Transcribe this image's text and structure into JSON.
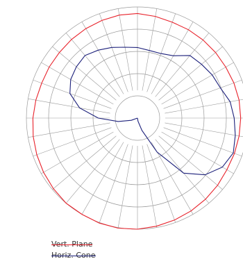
{
  "chart_data": {
    "type": "polar",
    "grid": true,
    "rings": 5,
    "radial_divisions": 36,
    "legend_placement": "bottom-left",
    "series": [
      {
        "name": "Vert. Plane",
        "color": "#e8212a",
        "points": [
          [
            0,
            170
          ],
          [
            10,
            168
          ],
          [
            20,
            166
          ],
          [
            30,
            164
          ],
          [
            40,
            162
          ],
          [
            50,
            160
          ],
          [
            60,
            158
          ],
          [
            70,
            158
          ],
          [
            80,
            158
          ],
          [
            90,
            158
          ],
          [
            100,
            158
          ],
          [
            110,
            157
          ],
          [
            120,
            156
          ],
          [
            130,
            156
          ],
          [
            140,
            156
          ],
          [
            150,
            156
          ],
          [
            160,
            156
          ],
          [
            170,
            158
          ],
          [
            180,
            160
          ],
          [
            190,
            160
          ],
          [
            200,
            159
          ],
          [
            210,
            158
          ],
          [
            220,
            157
          ],
          [
            230,
            156
          ],
          [
            240,
            156
          ],
          [
            250,
            156
          ],
          [
            260,
            158
          ],
          [
            270,
            160
          ],
          [
            280,
            162
          ],
          [
            290,
            164
          ],
          [
            300,
            166
          ],
          [
            310,
            168
          ],
          [
            320,
            170
          ],
          [
            330,
            170
          ],
          [
            340,
            171
          ],
          [
            350,
            171
          ]
        ]
      },
      {
        "name": "Horiz. Cone",
        "color": "#1b1f7a",
        "points": [
          [
            0,
            0
          ],
          [
            10,
            5
          ],
          [
            20,
            20
          ],
          [
            30,
            60
          ],
          [
            40,
            110
          ],
          [
            50,
            135
          ],
          [
            60,
            150
          ],
          [
            70,
            156
          ],
          [
            80,
            152
          ],
          [
            90,
            148
          ],
          [
            100,
            144
          ],
          [
            110,
            135
          ],
          [
            120,
            132
          ],
          [
            130,
            128
          ],
          [
            140,
            125
          ],
          [
            150,
            110
          ],
          [
            160,
            105
          ],
          [
            170,
            105
          ],
          [
            180,
            108
          ],
          [
            190,
            110
          ],
          [
            200,
            115
          ],
          [
            210,
            120
          ],
          [
            220,
            125
          ],
          [
            230,
            122
          ],
          [
            240,
            118
          ],
          [
            250,
            110
          ],
          [
            260,
            90
          ],
          [
            270,
            60
          ],
          [
            280,
            30
          ],
          [
            290,
            10
          ],
          [
            300,
            0
          ],
          [
            310,
            0
          ],
          [
            320,
            0
          ],
          [
            330,
            0
          ],
          [
            340,
            0
          ],
          [
            350,
            0
          ]
        ]
      }
    ]
  },
  "legend": {
    "vert_label": "Vert. Plane",
    "horiz_label": "Horiz. Cone",
    "vert_color": "#e8212a",
    "horiz_color": "#1b1f7a"
  }
}
